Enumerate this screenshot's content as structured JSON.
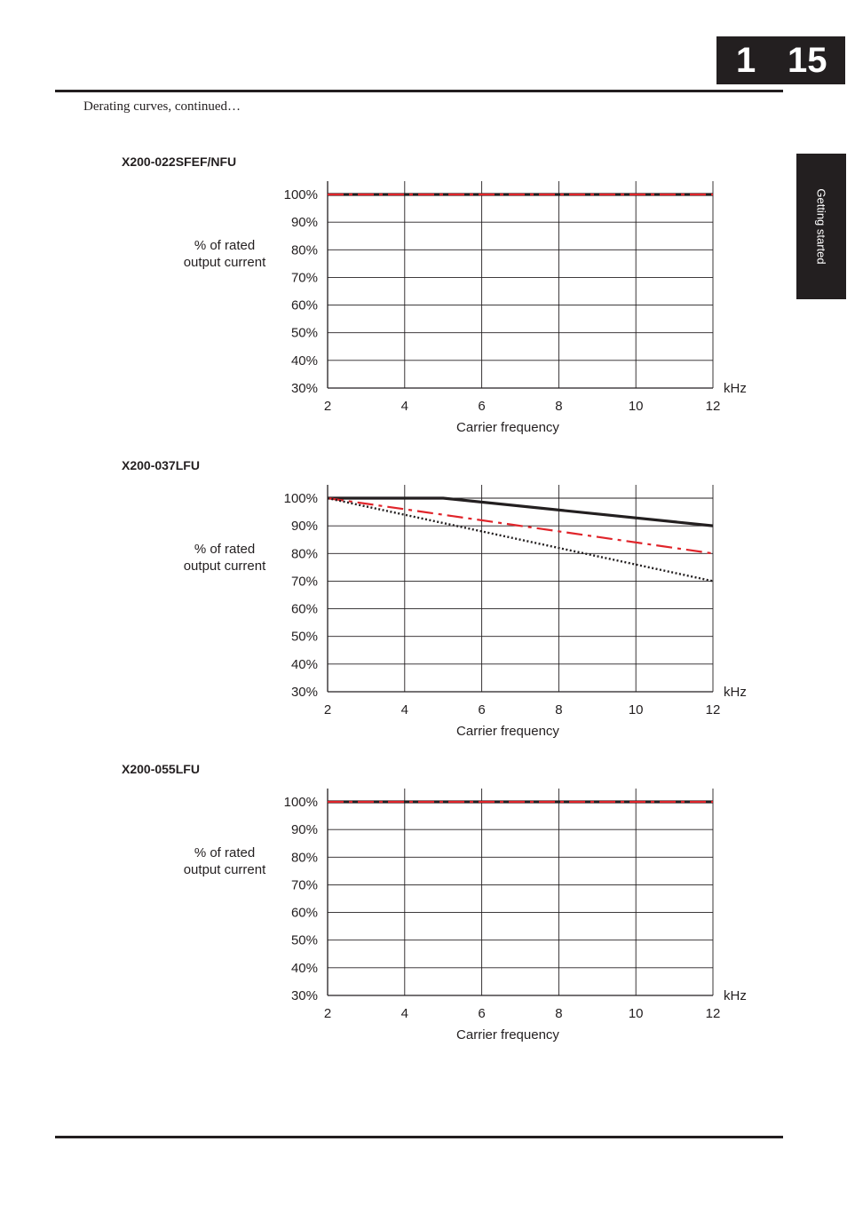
{
  "header": {
    "chapter": "1",
    "page": "15"
  },
  "intro_text": "Derating curves, continued…",
  "side_tab": "Getting started",
  "colors": {
    "solid": "#231f20",
    "dashdot": "#e0242a",
    "dotted": "#231f20"
  },
  "chart_data": [
    {
      "type": "line",
      "title": "X200-022SFEF/NFU",
      "ylabel": [
        "% of rated",
        "output current"
      ],
      "xlabel": "Carrier frequency",
      "x_unit": "kHz",
      "xlim": [
        2,
        12
      ],
      "ylim": [
        30,
        100
      ],
      "xticks": [
        "2",
        "4",
        "6",
        "8",
        "10",
        "12"
      ],
      "yticks": [
        "30%",
        "40%",
        "50%",
        "60%",
        "70%",
        "80%",
        "90%",
        "100%"
      ],
      "grid": true,
      "series": [
        {
          "style": "solid",
          "x": [
            2,
            12
          ],
          "y": [
            100,
            100
          ]
        },
        {
          "style": "dashdot",
          "x": [
            2,
            12
          ],
          "y": [
            100,
            100
          ]
        }
      ]
    },
    {
      "type": "line",
      "title": "X200-037LFU",
      "ylabel": [
        "% of rated",
        "output current"
      ],
      "xlabel": "Carrier frequency",
      "x_unit": "kHz",
      "xlim": [
        2,
        12
      ],
      "ylim": [
        30,
        100
      ],
      "xticks": [
        "2",
        "4",
        "6",
        "8",
        "10",
        "12"
      ],
      "yticks": [
        "30%",
        "40%",
        "50%",
        "60%",
        "70%",
        "80%",
        "90%",
        "100%"
      ],
      "grid": true,
      "series": [
        {
          "style": "solid",
          "x": [
            2,
            5,
            12
          ],
          "y": [
            100,
            100,
            90
          ]
        },
        {
          "style": "dashdot",
          "x": [
            2,
            12
          ],
          "y": [
            100,
            80
          ]
        },
        {
          "style": "dotted",
          "x": [
            2,
            12
          ],
          "y": [
            100,
            70
          ]
        }
      ]
    },
    {
      "type": "line",
      "title": "X200-055LFU",
      "ylabel": [
        "% of rated",
        "output current"
      ],
      "xlabel": "Carrier frequency",
      "x_unit": "kHz",
      "xlim": [
        2,
        12
      ],
      "ylim": [
        30,
        100
      ],
      "xticks": [
        "2",
        "4",
        "6",
        "8",
        "10",
        "12"
      ],
      "yticks": [
        "30%",
        "40%",
        "50%",
        "60%",
        "70%",
        "80%",
        "90%",
        "100%"
      ],
      "grid": true,
      "series": [
        {
          "style": "solid",
          "x": [
            2,
            12
          ],
          "y": [
            100,
            100
          ]
        },
        {
          "style": "dashdot",
          "x": [
            2,
            12
          ],
          "y": [
            100,
            100
          ]
        }
      ]
    }
  ]
}
